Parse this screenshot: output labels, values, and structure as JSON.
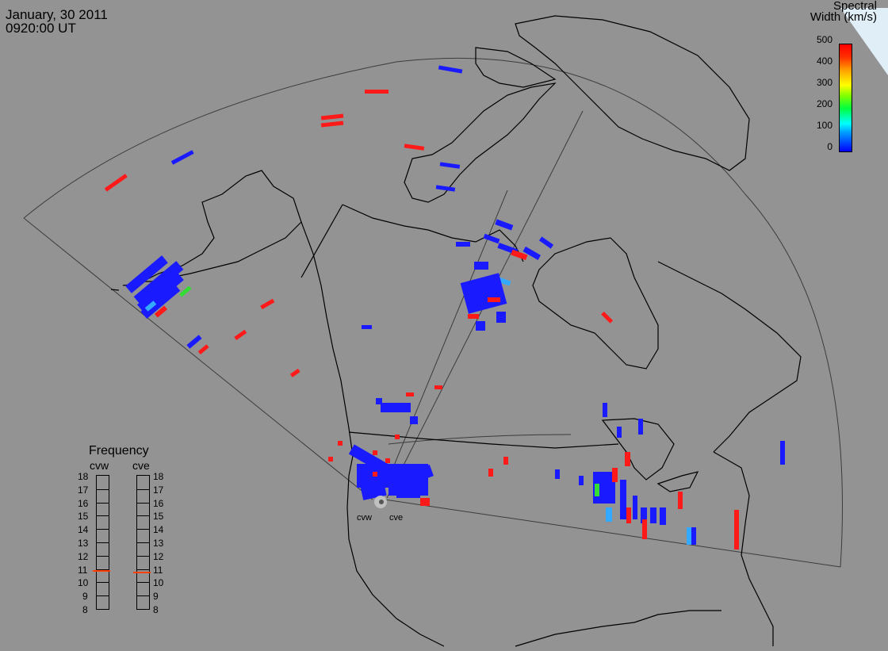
{
  "header": {
    "date": "January, 30 2011",
    "time": "0920:00 UT"
  },
  "colorbar": {
    "title_line1": "Spectral",
    "title_line2": "Width (km/s)",
    "ticks": [
      "500",
      "400",
      "300",
      "200",
      "100",
      "0"
    ],
    "colors": {
      "low": "#0000ff",
      "mid": "#00ff40",
      "high": "#ff0000"
    }
  },
  "frequency_panel": {
    "title": "Frequency",
    "radars": [
      "cvw",
      "cve"
    ],
    "scale": [
      "18",
      "17",
      "16",
      "15",
      "14",
      "13",
      "12",
      "11",
      "10",
      "9",
      "8"
    ],
    "cvw_value_mhz": 10.8,
    "cve_value_mhz": 10.7
  },
  "radar_sites": {
    "west": "cvw",
    "east": "cve"
  },
  "map_colors": {
    "background": "#939393",
    "coastline": "#000000",
    "fov": "#404040",
    "west_site_dot": "#c0c0c0"
  }
}
